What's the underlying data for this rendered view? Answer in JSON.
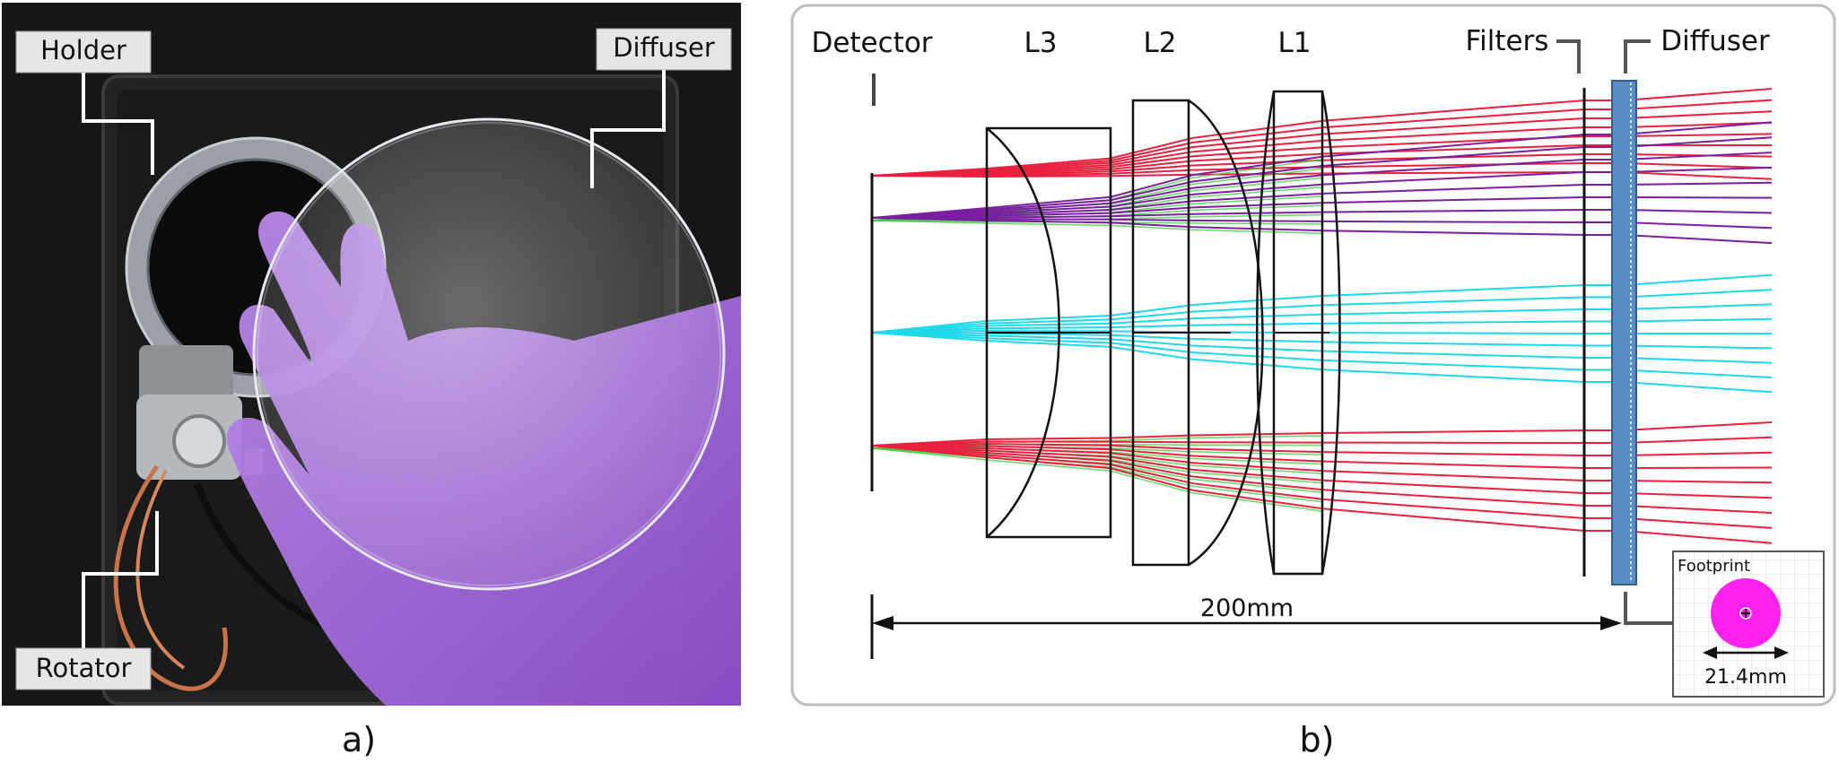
{
  "panel_a": {
    "caption": "a)",
    "labels": {
      "holder": "Holder",
      "diffuser": "Diffuser",
      "rotator": "Rotator"
    }
  },
  "panel_b": {
    "caption": "b)",
    "labels": {
      "detector": "Detector",
      "l3": "L3",
      "l2": "L2",
      "l1": "L1",
      "filters": "Filters",
      "diffuser": "Diffuser",
      "distance": "200mm",
      "footprint_title": "Footprint",
      "footprint_size": "21.4mm"
    },
    "colors": {
      "ray_red": "#e8213f",
      "ray_purple": "#7a1fa0",
      "ray_cyan": "#1ed9e8",
      "ray_green": "#3ecf3e",
      "diffuser_fill": "#5b8fc4",
      "footprint_spot": "#ff22ee"
    }
  }
}
